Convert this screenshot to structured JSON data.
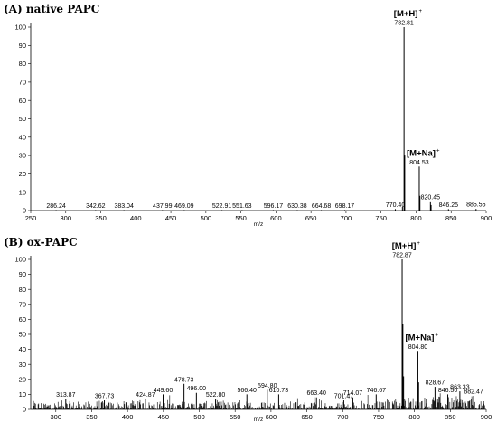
{
  "chart_data": [
    {
      "type": "line",
      "title": "(A)  native PAPC",
      "xlabel": "m/z",
      "ylabel": "",
      "xlim": [
        250,
        900
      ],
      "ylim": [
        0,
        100
      ],
      "xticks": [
        250,
        300,
        350,
        400,
        450,
        500,
        550,
        600,
        650,
        700,
        750,
        800,
        850,
        900
      ],
      "yticks": [
        0,
        10,
        20,
        30,
        40,
        50,
        60,
        70,
        80,
        90,
        100
      ],
      "peaks": [
        {
          "x": 782.81,
          "y": 100,
          "label": "782.81"
        },
        {
          "x": 783.8,
          "y": 30,
          "label": ""
        },
        {
          "x": 804.53,
          "y": 24,
          "label": "804.53"
        },
        {
          "x": 805.5,
          "y": 8,
          "label": ""
        },
        {
          "x": 820.45,
          "y": 5,
          "label": "820.45"
        },
        {
          "x": 821.4,
          "y": 3,
          "label": ""
        },
        {
          "x": 780.5,
          "y": 2,
          "label": ""
        },
        {
          "x": 846.25,
          "y": 0.8,
          "label": "846.25"
        },
        {
          "x": 885.55,
          "y": 0.9,
          "label": "885.55"
        },
        {
          "x": 770.4,
          "y": 0.8,
          "label": "770.40"
        },
        {
          "x": 286.24,
          "y": 0.3,
          "label": "286.24"
        },
        {
          "x": 342.62,
          "y": 0.3,
          "label": "342.62"
        },
        {
          "x": 383.04,
          "y": 0.3,
          "label": "383.04"
        },
        {
          "x": 437.99,
          "y": 0.3,
          "label": "437.99"
        },
        {
          "x": 469.09,
          "y": 0.3,
          "label": "469.09"
        },
        {
          "x": 522.91,
          "y": 0.3,
          "label": "522.91"
        },
        {
          "x": 551.63,
          "y": 0.3,
          "label": "551.63"
        },
        {
          "x": 596.17,
          "y": 0.3,
          "label": "596.17"
        },
        {
          "x": 630.38,
          "y": 0.3,
          "label": "630.38"
        },
        {
          "x": 664.68,
          "y": 0.3,
          "label": "664.68"
        },
        {
          "x": 698.17,
          "y": 0.3,
          "label": "698.17"
        }
      ],
      "annotations": [
        {
          "text": "[M+H]",
          "sup": "+",
          "x": 782.81
        },
        {
          "text": "[M+Na]",
          "sup": "+",
          "x": 804.53
        }
      ]
    },
    {
      "type": "line",
      "title": "(B)  ox-PAPC",
      "xlabel": "m/z",
      "ylabel": "",
      "xlim": [
        265,
        900
      ],
      "ylim": [
        0,
        100
      ],
      "xticks": [
        300,
        350,
        400,
        450,
        500,
        550,
        600,
        650,
        700,
        750,
        800,
        850,
        900
      ],
      "yticks": [
        0,
        10,
        20,
        30,
        40,
        50,
        60,
        70,
        80,
        90,
        100
      ],
      "peaks": [
        {
          "x": 782.87,
          "y": 100,
          "label": "782.87"
        },
        {
          "x": 783.9,
          "y": 57,
          "label": ""
        },
        {
          "x": 784.9,
          "y": 22,
          "label": ""
        },
        {
          "x": 804.8,
          "y": 39,
          "label": "804.80"
        },
        {
          "x": 805.8,
          "y": 18,
          "label": ""
        },
        {
          "x": 828.67,
          "y": 15,
          "label": "828.67"
        },
        {
          "x": 846.5,
          "y": 10,
          "label": "846.50"
        },
        {
          "x": 863.33,
          "y": 12,
          "label": "863.33"
        },
        {
          "x": 882.47,
          "y": 9,
          "label": "882.47"
        },
        {
          "x": 313.87,
          "y": 7,
          "label": "313.87"
        },
        {
          "x": 367.73,
          "y": 6,
          "label": "367.73"
        },
        {
          "x": 424.87,
          "y": 7,
          "label": "424.87"
        },
        {
          "x": 449.6,
          "y": 10,
          "label": "449.60"
        },
        {
          "x": 478.73,
          "y": 17,
          "label": "478.73"
        },
        {
          "x": 496.0,
          "y": 11,
          "label": "496.00"
        },
        {
          "x": 522.8,
          "y": 7,
          "label": "522.80"
        },
        {
          "x": 566.4,
          "y": 10,
          "label": "566.40"
        },
        {
          "x": 594.8,
          "y": 13,
          "label": "594.80"
        },
        {
          "x": 610.73,
          "y": 10,
          "label": "610.73"
        },
        {
          "x": 663.4,
          "y": 8,
          "label": "663.40"
        },
        {
          "x": 701.47,
          "y": 6,
          "label": "701.47"
        },
        {
          "x": 714.07,
          "y": 8,
          "label": "714.07"
        },
        {
          "x": 746.67,
          "y": 10,
          "label": "746.67"
        }
      ],
      "annotations": [
        {
          "text": "[M+H]",
          "sup": "+",
          "x": 782.87
        },
        {
          "text": "[M+Na]",
          "sup": "+",
          "x": 804.8
        }
      ]
    }
  ]
}
